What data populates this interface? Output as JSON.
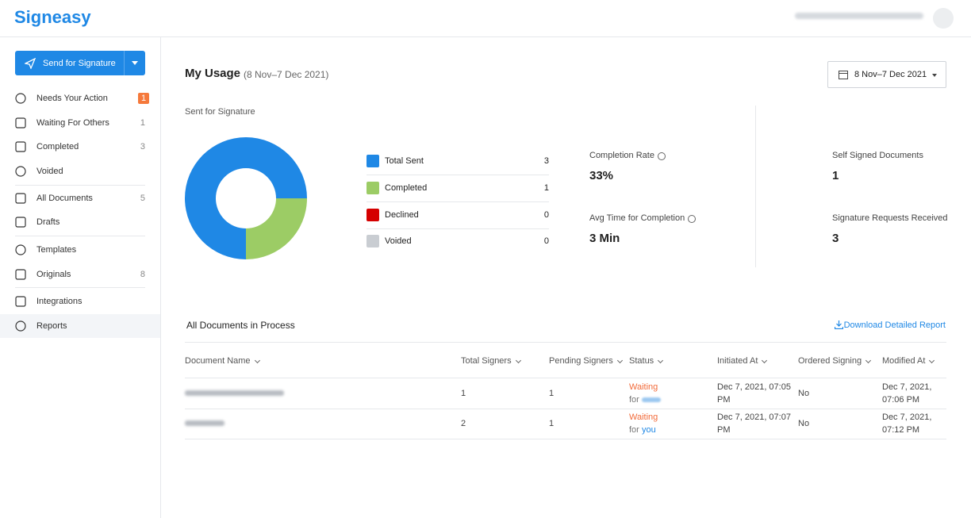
{
  "header": {
    "logo": "Signeasy"
  },
  "sidebar": {
    "send_button": "Send for Signature",
    "items": [
      {
        "label": "Needs Your Action",
        "count": 1,
        "badge_color": "#f5793b"
      },
      {
        "label": "Waiting For Others",
        "count": 1
      },
      {
        "label": "Completed",
        "count": 3
      },
      {
        "label": "Voided"
      },
      {
        "label": "All Documents",
        "count": 5
      },
      {
        "label": "Drafts"
      },
      {
        "label": "Templates"
      },
      {
        "label": "Originals",
        "count": 8
      },
      {
        "label": "Integrations"
      },
      {
        "label": "Reports",
        "active": true
      }
    ]
  },
  "usage": {
    "title": "My Usage",
    "range": "(8 Nov–7 Dec 2021)",
    "date_picker": "8 Nov–7 Dec 2021",
    "chart_label": "Sent for Signature",
    "legend": [
      {
        "label": "Total Sent",
        "value": 3,
        "color": "#1f88e5"
      },
      {
        "label": "Completed",
        "value": 1,
        "color": "#9ccc65"
      },
      {
        "label": "Declined",
        "value": 0,
        "color": "#d50000"
      },
      {
        "label": "Voided",
        "value": 0,
        "color": "#c9cdd2"
      }
    ],
    "stats": [
      {
        "label": "Completion Rate",
        "value": "33%"
      },
      {
        "label": "Avg Time for Completion",
        "value": "3 Min"
      },
      {
        "label": "Self Signed Documents",
        "value": 1
      },
      {
        "label": "Signature Requests Received",
        "value": 3
      }
    ]
  },
  "table": {
    "title": "All Documents in Process",
    "download": "Download Detailed Report",
    "columns": [
      "Document Name",
      "Total Signers",
      "Pending Signers",
      "Status",
      "Initiated At",
      "Ordered Signing",
      "Modified At"
    ],
    "rows": [
      {
        "total_signers": 1,
        "pending_signers": 1,
        "status": "Waiting",
        "for": "for",
        "initiated": "Dec 7, 2021, 07:05 PM",
        "ordered": "No",
        "modified": "Dec 7, 2021, 07:06 PM"
      },
      {
        "total_signers": 2,
        "pending_signers": 1,
        "status": "Waiting",
        "for": "for",
        "for_name": "you",
        "initiated": "Dec 7, 2021, 07:07 PM",
        "ordered": "No",
        "modified": "Dec 7, 2021, 07:12 PM"
      }
    ]
  }
}
